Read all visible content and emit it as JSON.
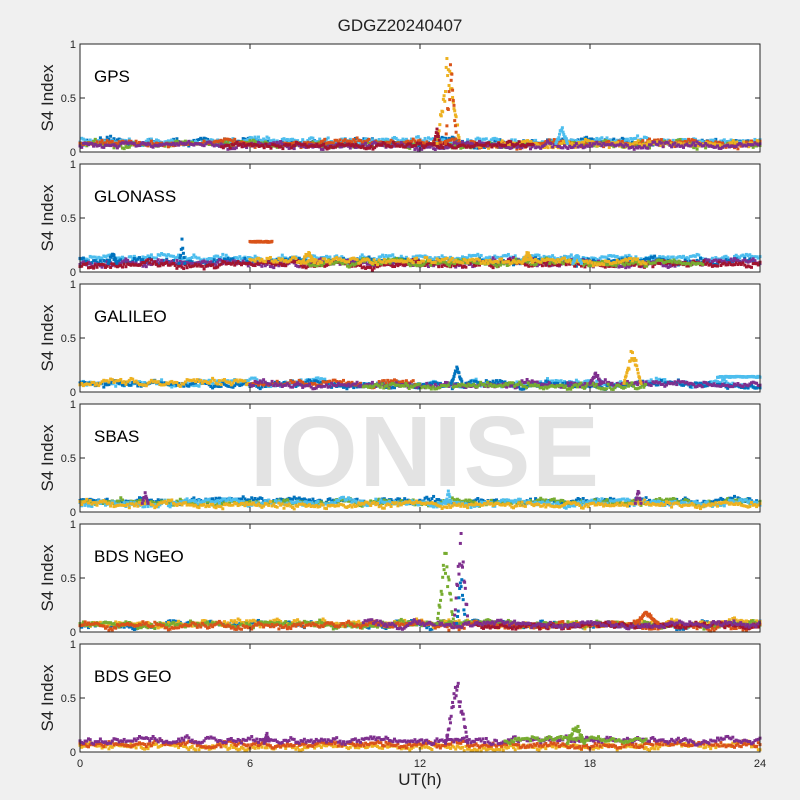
{
  "chart_data": {
    "type": "scatter",
    "title": "GDGZ20240407",
    "xlabel": "UT(h)",
    "ylabel": "S4 Index",
    "xlim": [
      0,
      24
    ],
    "ylim": [
      0,
      1
    ],
    "xticks": [
      0,
      6,
      12,
      18,
      24
    ],
    "yticks": [
      0,
      0.5,
      1
    ],
    "ytick_labels": [
      "0",
      "0.5",
      "1"
    ],
    "watermark": "IONISE",
    "colors": {
      "blue": "#0072BD",
      "red": "#D95319",
      "orange": "#EDB120",
      "purple": "#7E2F8E",
      "green": "#77AC30",
      "lightblue": "#4DBEEE",
      "darkred": "#A2142F"
    },
    "panels": [
      {
        "label": "GPS",
        "series": [
          {
            "color": "blue",
            "level": 0.09,
            "range": [
              0,
              24
            ]
          },
          {
            "color": "lightblue",
            "level": 0.1,
            "range": [
              0,
              24
            ]
          },
          {
            "color": "green",
            "level": 0.07,
            "range": [
              0,
              24
            ]
          },
          {
            "color": "red",
            "level": 0.08,
            "range": [
              0,
              24
            ]
          },
          {
            "color": "orange",
            "level": 0.07,
            "range": [
              14,
              24
            ]
          },
          {
            "color": "purple",
            "level": 0.06,
            "range": [
              0,
              24
            ]
          },
          {
            "color": "darkred",
            "level": 0.06,
            "range": [
              5,
              16
            ]
          }
        ],
        "spikes": [
          {
            "color": "orange",
            "range": [
              12.6,
              13.4
            ],
            "peak": 1.0
          },
          {
            "color": "red",
            "range": [
              12.9,
              13.3
            ],
            "peak": 0.95
          },
          {
            "color": "darkred",
            "range": [
              12.5,
              12.7
            ],
            "peak": 0.25
          },
          {
            "color": "lightblue",
            "range": [
              16.8,
              17.2
            ],
            "peak": 0.25
          }
        ]
      },
      {
        "label": "GLONASS",
        "series": [
          {
            "color": "lightblue",
            "level": 0.13,
            "range": [
              0,
              24
            ]
          },
          {
            "color": "blue",
            "level": 0.1,
            "range": [
              0,
              24
            ]
          },
          {
            "color": "purple",
            "level": 0.08,
            "range": [
              0,
              24
            ]
          },
          {
            "color": "darkred",
            "level": 0.07,
            "range": [
              0,
              24
            ]
          },
          {
            "color": "green",
            "level": 0.09,
            "range": [
              8,
              22
            ]
          },
          {
            "color": "orange",
            "level": 0.1,
            "range": [
              6,
              20
            ]
          }
        ],
        "spikes": [
          {
            "color": "blue",
            "range": [
              1,
              1.3
            ],
            "peak": 0.2
          },
          {
            "color": "blue",
            "range": [
              3.5,
              3.7
            ],
            "peak": 0.32
          },
          {
            "color": "red",
            "range": [
              6.0,
              6.8
            ],
            "peak": 0.28,
            "flat": true
          },
          {
            "color": "orange",
            "range": [
              7.8,
              8.3
            ],
            "peak": 0.2
          },
          {
            "color": "orange",
            "range": [
              15.6,
              16.0
            ],
            "peak": 0.2
          },
          {
            "color": "lightblue",
            "range": [
              17.4,
              17.7
            ],
            "peak": 0.18
          }
        ]
      },
      {
        "label": "GALILEO",
        "series": [
          {
            "color": "lightblue",
            "level": 0.08,
            "range": [
              0,
              24
            ]
          },
          {
            "color": "blue",
            "level": 0.07,
            "range": [
              0,
              24
            ]
          },
          {
            "color": "orange",
            "level": 0.09,
            "range": [
              0,
              6
            ]
          },
          {
            "color": "red",
            "level": 0.08,
            "range": [
              6,
              12
            ]
          },
          {
            "color": "purple",
            "level": 0.07,
            "range": [
              6,
              24
            ]
          },
          {
            "color": "green",
            "level": 0.06,
            "range": [
              10,
              20
            ]
          }
        ],
        "spikes": [
          {
            "color": "blue",
            "range": [
              13.1,
              13.5
            ],
            "peak": 0.25
          },
          {
            "color": "orange",
            "range": [
              19.2,
              19.8
            ],
            "peak": 0.45
          },
          {
            "color": "purple",
            "range": [
              18.0,
              18.4
            ],
            "peak": 0.2
          },
          {
            "color": "lightblue",
            "range": [
              22.5,
              24
            ],
            "peak": 0.14,
            "flat": true
          }
        ]
      },
      {
        "label": "SBAS",
        "series": [
          {
            "color": "blue",
            "level": 0.1,
            "range": [
              0,
              24
            ]
          },
          {
            "color": "green",
            "level": 0.09,
            "range": [
              0,
              24
            ]
          },
          {
            "color": "lightblue",
            "level": 0.08,
            "range": [
              0,
              24
            ]
          },
          {
            "color": "orange",
            "level": 0.07,
            "range": [
              0,
              24
            ]
          }
        ],
        "spikes": [
          {
            "color": "purple",
            "range": [
              2.2,
              2.4
            ],
            "peak": 0.2
          },
          {
            "color": "lightblue",
            "range": [
              12.9,
              13.1
            ],
            "peak": 0.2
          },
          {
            "color": "purple",
            "range": [
              19.6,
              19.8
            ],
            "peak": 0.22
          }
        ]
      },
      {
        "label": "BDS NGEO",
        "series": [
          {
            "color": "blue",
            "level": 0.07,
            "range": [
              0,
              24
            ]
          },
          {
            "color": "orange",
            "level": 0.08,
            "range": [
              0,
              24
            ]
          },
          {
            "color": "green",
            "level": 0.07,
            "range": [
              0,
              24
            ]
          },
          {
            "color": "red",
            "level": 0.06,
            "range": [
              0,
              24
            ]
          },
          {
            "color": "darkred",
            "level": 0.06,
            "range": [
              14,
              24
            ]
          },
          {
            "color": "purple",
            "level": 0.07,
            "range": [
              10,
              24
            ]
          }
        ],
        "spikes": [
          {
            "color": "green",
            "range": [
              12.6,
              13.2
            ],
            "peak": 0.8
          },
          {
            "color": "purple",
            "range": [
              13.2,
              13.7
            ],
            "peak": 1.0
          },
          {
            "color": "blue",
            "range": [
              13.3,
              13.6
            ],
            "peak": 0.6
          },
          {
            "color": "red",
            "range": [
              19.6,
              20.4
            ],
            "peak": 0.2
          }
        ]
      },
      {
        "label": "BDS GEO",
        "series": [
          {
            "color": "orange",
            "level": 0.05,
            "range": [
              0,
              24
            ]
          },
          {
            "color": "red",
            "level": 0.07,
            "range": [
              0,
              24
            ]
          },
          {
            "color": "purple",
            "level": 0.11,
            "range": [
              0,
              24
            ]
          },
          {
            "color": "green",
            "level": 0.12,
            "range": [
              15,
              20
            ]
          }
        ],
        "spikes": [
          {
            "color": "purple",
            "range": [
              12.9,
              13.7
            ],
            "peak": 0.75
          },
          {
            "color": "green",
            "range": [
              17.2,
              17.8
            ],
            "peak": 0.3
          },
          {
            "color": "purple",
            "range": [
              6.5,
              6.7
            ],
            "peak": 0.18
          }
        ]
      }
    ]
  }
}
